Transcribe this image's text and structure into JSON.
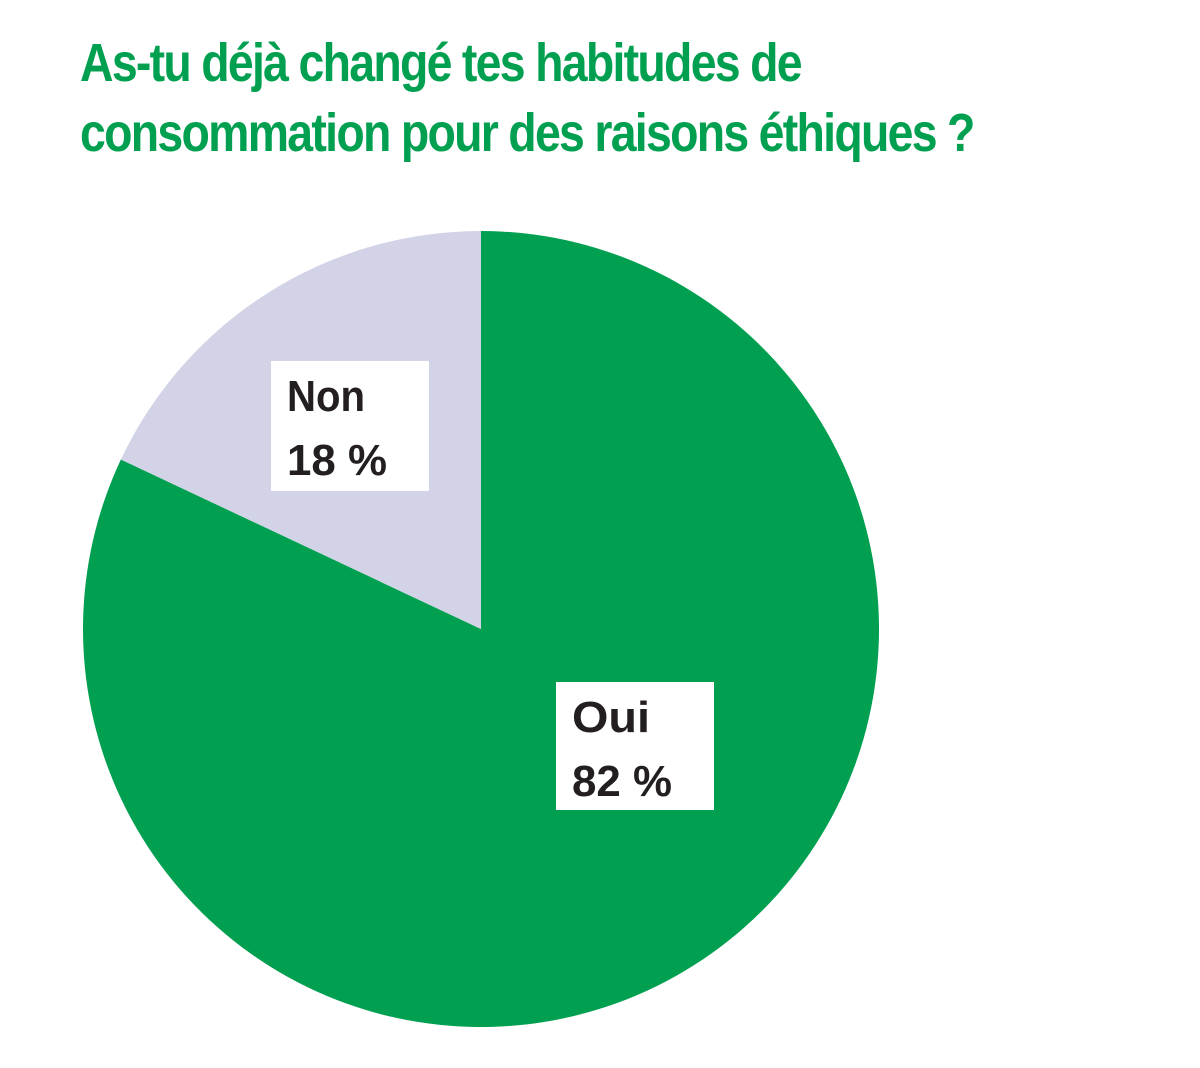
{
  "chart_data": {
    "type": "pie",
    "title_lines": [
      "As-tu déjà changé tes habitudes de",
      "consommation pour des raisons éthiques ?"
    ],
    "slices": [
      {
        "label": "Oui",
        "value": 82,
        "value_label": "82 %",
        "color": "#00a050"
      },
      {
        "label": "Non",
        "value": 18,
        "value_label": "18 %",
        "color": "#d3d3e8"
      }
    ],
    "title_color": "#00a050",
    "label_box_color": "#ffffff",
    "label_text_color": "#231f20"
  }
}
